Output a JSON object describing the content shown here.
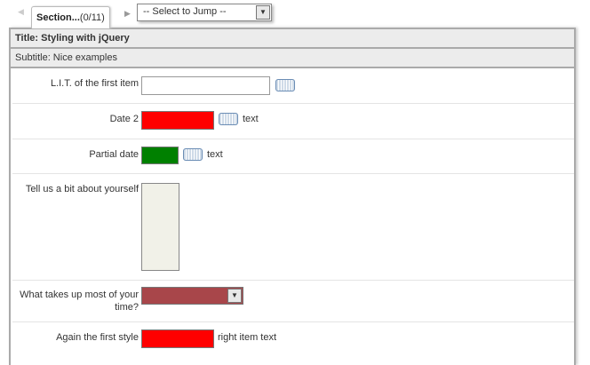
{
  "nav": {
    "section_label": "Section...",
    "section_count": "(0/11)",
    "jump_placeholder": "-- Select to Jump --"
  },
  "panel": {
    "title": "Title: Styling with jQuery",
    "subtitle": "Subtitle: Nice examples"
  },
  "fields": [
    {
      "label": "L.I.T. of the first item",
      "value": ""
    },
    {
      "label": "Date 2",
      "suffix": "text",
      "color": "#ff0000"
    },
    {
      "label": "Partial date",
      "suffix": "text",
      "color": "#008000"
    },
    {
      "label": "Tell us a bit about yourself",
      "value": ""
    },
    {
      "label": "What takes up most of your time?",
      "color": "#a8464a"
    },
    {
      "label": "Again the first style",
      "suffix": "right item text",
      "color": "#ff0000"
    }
  ]
}
